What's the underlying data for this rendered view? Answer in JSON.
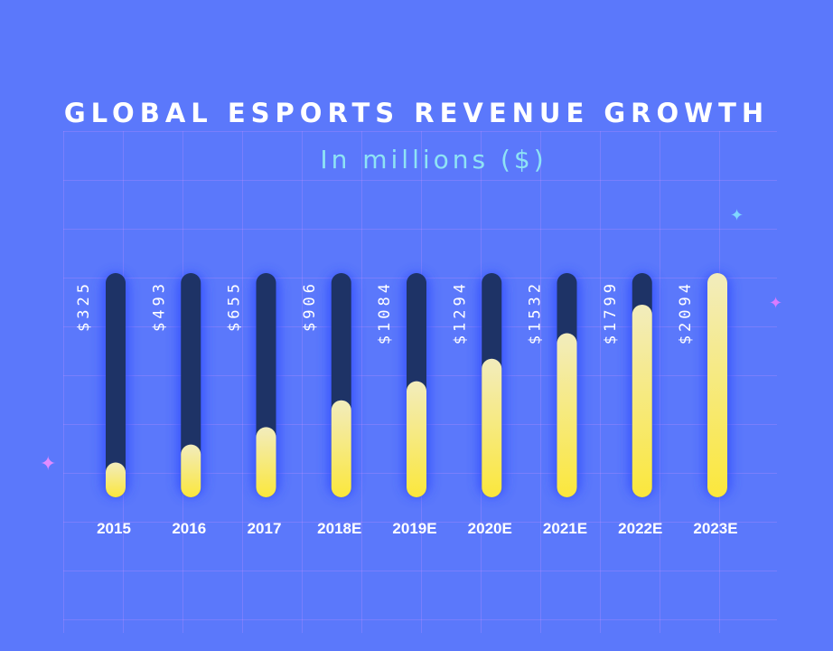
{
  "header": {
    "title": "GLOBAL ESPORTS REVENUE GROWTH",
    "subtitle": "In millions ($)"
  },
  "colors": {
    "background": "#5b78fb",
    "track": "#1e3366",
    "fill_top": "#f2ecbd",
    "fill_bottom": "#fbe73c",
    "value_label": "#ffffff",
    "subtitle": "#8ee3f5"
  },
  "chart_data": {
    "type": "bar",
    "title": "GLOBAL ESPORTS REVENUE GROWTH",
    "subtitle": "In millions ($)",
    "categories": [
      "2015",
      "2016",
      "2017",
      "2018E",
      "2019E",
      "2020E",
      "2021E",
      "2022E",
      "2023E"
    ],
    "values": [
      325,
      493,
      655,
      906,
      1084,
      1294,
      1532,
      1799,
      2094
    ],
    "value_labels": [
      "$325",
      "$493",
      "$655",
      "$906",
      "$1084",
      "$1294",
      "$1532",
      "$1799",
      "$2094"
    ],
    "ylim": [
      0,
      2094
    ],
    "grid": true,
    "legend": "none"
  }
}
